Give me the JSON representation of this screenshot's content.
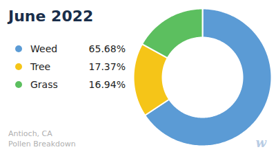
{
  "chart_data": {
    "type": "donut",
    "title": "June 2022",
    "subtitle": [
      "Antioch, CA",
      "Pollen Breakdown"
    ],
    "categories": [
      "Weed",
      "Tree",
      "Grass"
    ],
    "values": [
      65.68,
      17.37,
      16.94
    ],
    "value_labels": [
      "65.68%",
      "17.37%",
      "16.94%"
    ],
    "colors": [
      "#5B9BD5",
      "#F5C518",
      "#5CBF5F"
    ],
    "annotations": [
      "w"
    ]
  }
}
